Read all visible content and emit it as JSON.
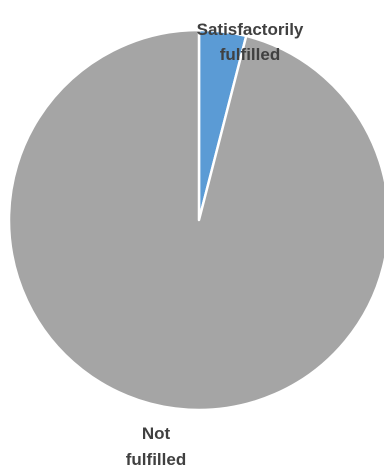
{
  "chart_data": {
    "type": "pie",
    "categories": [
      "Satisfactorily fulfilled",
      "Not fulfilled"
    ],
    "values": [
      4,
      96
    ],
    "colors": [
      "#5b9bd5",
      "#a5a5a5"
    ],
    "slice_border_color": "#ffffff",
    "label_color": "#404040",
    "start_angle_deg": 0,
    "direction": "clockwise",
    "legend": "none",
    "data_labels": [
      [
        "Satisfactorily",
        "fulfilled"
      ],
      [
        "Not",
        "fulfilled"
      ]
    ]
  }
}
